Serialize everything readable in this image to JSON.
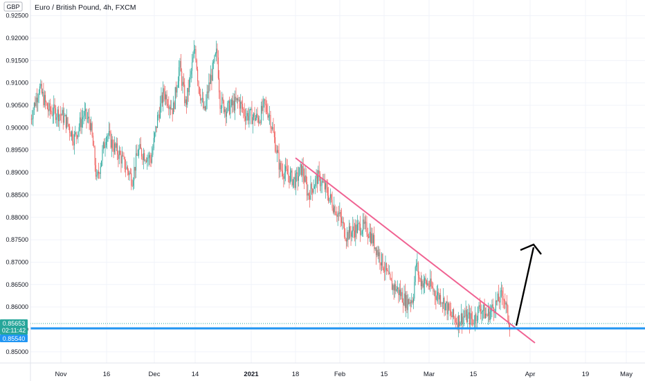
{
  "header": {
    "currency_badge": "GBP",
    "title": "Euro / British Pound, 4h, FXCM"
  },
  "price_axis": {
    "labels": [
      "0.92500",
      "0.92000",
      "0.91500",
      "0.91000",
      "0.90500",
      "0.90000",
      "0.89500",
      "0.89000",
      "0.88500",
      "0.88000",
      "0.87500",
      "0.87000",
      "0.86500",
      "0.86000",
      "0.85500",
      "0.85000"
    ]
  },
  "time_axis": {
    "labels": [
      {
        "text": "Nov",
        "bold": false
      },
      {
        "text": "16",
        "bold": false
      },
      {
        "text": "Dec",
        "bold": false
      },
      {
        "text": "14",
        "bold": false
      },
      {
        "text": "2021",
        "bold": true
      },
      {
        "text": "18",
        "bold": false
      },
      {
        "text": "Feb",
        "bold": false
      },
      {
        "text": "15",
        "bold": false
      },
      {
        "text": "Mar",
        "bold": false
      },
      {
        "text": "15",
        "bold": false
      },
      {
        "text": "Apr",
        "bold": false
      },
      {
        "text": "19",
        "bold": false
      },
      {
        "text": "May",
        "bold": false
      }
    ]
  },
  "badges": {
    "last_price": "0.85653",
    "countdown": "02:11:42",
    "support_level": "0.85540"
  },
  "colors": {
    "up": "#26a69a",
    "down": "#ef5350",
    "trendline": "#f06292",
    "support": "#2196f3",
    "arrow": "#000000",
    "grid": "#f0f3fa"
  },
  "chart_data": {
    "type": "candlestick",
    "title": "Euro / British Pound, 4h, FXCM",
    "ylim": [
      0.8475,
      0.9285
    ],
    "y_ticks": [
      0.925,
      0.92,
      0.915,
      0.91,
      0.905,
      0.9,
      0.895,
      0.89,
      0.885,
      0.88,
      0.875,
      0.87,
      0.865,
      0.86,
      0.855,
      0.85
    ],
    "price_path": [
      [
        "Oct 26",
        0.902
      ],
      [
        "Oct 28",
        0.909
      ],
      [
        "Oct 30",
        0.904
      ],
      [
        "Nov 2",
        0.903
      ],
      [
        "Nov 4",
        0.901
      ],
      [
        "Nov 6",
        0.8975
      ],
      [
        "Nov 9",
        0.903
      ],
      [
        "Nov 11",
        0.901
      ],
      [
        "Nov 12",
        0.895
      ],
      [
        "Nov 13",
        0.888
      ],
      [
        "Nov 16",
        0.899
      ],
      [
        "Nov 18",
        0.896
      ],
      [
        "Nov 20",
        0.894
      ],
      [
        "Nov 23",
        0.89
      ],
      [
        "Nov 24",
        0.8885
      ],
      [
        "Nov 26",
        0.895
      ],
      [
        "Nov 30",
        0.893
      ],
      [
        "Dec 2",
        0.902
      ],
      [
        "Dec 4",
        0.908
      ],
      [
        "Dec 7",
        0.904
      ],
      [
        "Dec 9",
        0.914
      ],
      [
        "Dec 11",
        0.905
      ],
      [
        "Dec 14",
        0.918
      ],
      [
        "Dec 15",
        0.91
      ],
      [
        "Dec 17",
        0.903
      ],
      [
        "Dec 18",
        0.908
      ],
      [
        "Dec 21",
        0.917
      ],
      [
        "Dec 22",
        0.906
      ],
      [
        "Dec 24",
        0.904
      ],
      [
        "Dec 28",
        0.906
      ],
      [
        "Dec 30",
        0.903
      ],
      [
        "Jan 4",
        0.902
      ],
      [
        "Jan 6",
        0.905
      ],
      [
        "Jan 8",
        0.903
      ],
      [
        "Jan 12",
        0.891
      ],
      [
        "Jan 14",
        0.89
      ],
      [
        "Jan 18",
        0.888
      ],
      [
        "Jan 20",
        0.891
      ],
      [
        "Jan 22",
        0.885
      ],
      [
        "Jan 25",
        0.889
      ],
      [
        "Jan 27",
        0.887
      ],
      [
        "Jan 29",
        0.884
      ],
      [
        "Feb 1",
        0.88
      ],
      [
        "Feb 3",
        0.876
      ],
      [
        "Feb 5",
        0.877
      ],
      [
        "Feb 8",
        0.878
      ],
      [
        "Feb 10",
        0.877
      ],
      [
        "Feb 12",
        0.874
      ],
      [
        "Feb 15",
        0.869
      ],
      [
        "Feb 17",
        0.865
      ],
      [
        "Feb 19",
        0.864
      ],
      [
        "Feb 22",
        0.861
      ],
      [
        "Feb 24",
        0.862
      ],
      [
        "Feb 25",
        0.87
      ],
      [
        "Feb 26",
        0.866
      ],
      [
        "Mar 1",
        0.865
      ],
      [
        "Mar 3",
        0.863
      ],
      [
        "Mar 5",
        0.862
      ],
      [
        "Mar 8",
        0.858
      ],
      [
        "Mar 10",
        0.857
      ],
      [
        "Mar 12",
        0.858
      ],
      [
        "Mar 15",
        0.857
      ],
      [
        "Mar 17",
        0.86
      ],
      [
        "Mar 19",
        0.858
      ],
      [
        "Mar 22",
        0.861
      ],
      [
        "Mar 24",
        0.863
      ],
      [
        "Mar 25",
        0.859
      ],
      [
        "Mar 26",
        0.856
      ]
    ],
    "annotations": {
      "trendline": {
        "from": [
          "Jan 18",
          0.895
        ],
        "to": [
          "Mar 31",
          0.852
        ]
      },
      "support_line": 0.8554,
      "last_price_line": 0.85653,
      "arrow": {
        "from": [
          "Mar 26",
          0.8565
        ],
        "to": [
          "Mar 31",
          0.872
        ]
      }
    },
    "xlabel": "",
    "ylabel": "",
    "grid": true
  }
}
